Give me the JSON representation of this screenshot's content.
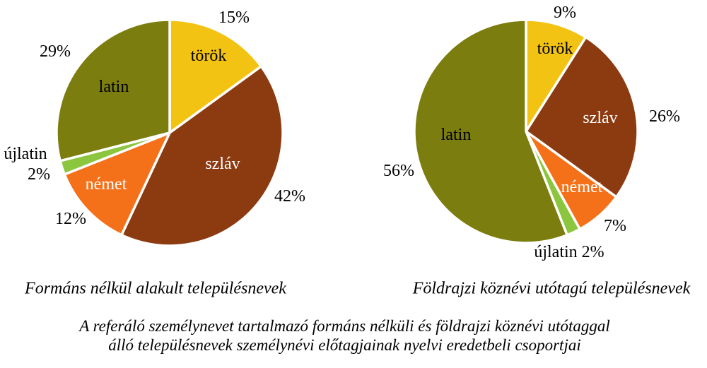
{
  "figure": {
    "caption_line1": "A referáló személynevet tartalmazó formáns nélküli és földrajzi köznévi utótaggal",
    "caption_line2": "álló településnevek személynévi előtagjainak nyelvi eredetbeli csoportjai"
  },
  "palette": {
    "torok_yellow": "#F3C313",
    "szlav_brown": "#8C3A10",
    "nemet_orange": "#F4711A",
    "ujlatin_green": "#8CC63E",
    "latin_olive": "#7B7D0E",
    "slice_border": "#FFFFFF"
  },
  "chart_data": [
    {
      "type": "pie",
      "title": "Formáns nélkül alakult településnevek",
      "categories": [
        "török",
        "szláv",
        "német",
        "újlatin",
        "latin"
      ],
      "values": [
        15,
        42,
        12,
        2,
        29
      ],
      "unit": "%",
      "colors": [
        "#F3C313",
        "#8C3A10",
        "#F4711A",
        "#8CC63E",
        "#7B7D0E"
      ],
      "start_angle_deg": 0,
      "direction": "clockwise",
      "slice_border_color": "#FFFFFF",
      "label_layout": "category names inside slices, percents outside",
      "labels": {
        "torok_name": "török",
        "torok_pct": "15%",
        "szlav_name": "szláv",
        "szlav_pct": "42%",
        "nemet_name": "német",
        "nemet_pct": "12%",
        "ujlatin_name": "újlatin",
        "ujlatin_pct": "2%",
        "latin_name": "latin",
        "latin_pct": "29%"
      }
    },
    {
      "type": "pie",
      "title": "Földrajzi köznévi utótagú településnevek",
      "categories": [
        "török",
        "szláv",
        "német",
        "újlatin",
        "latin"
      ],
      "values": [
        9,
        26,
        7,
        2,
        56
      ],
      "unit": "%",
      "colors": [
        "#F3C313",
        "#8C3A10",
        "#F4711A",
        "#8CC63E",
        "#7B7D0E"
      ],
      "start_angle_deg": 0,
      "direction": "clockwise",
      "slice_border_color": "#FFFFFF",
      "label_layout": "category names inside slices, percents outside",
      "labels": {
        "torok_name": "török",
        "torok_pct": "9%",
        "szlav_name": "szláv",
        "szlav_pct": "26%",
        "nemet_name": "német",
        "nemet_pct": "7%",
        "ujlatin_combined": "újlatin 2%",
        "latin_name": "latin",
        "latin_pct": "56%"
      }
    }
  ]
}
